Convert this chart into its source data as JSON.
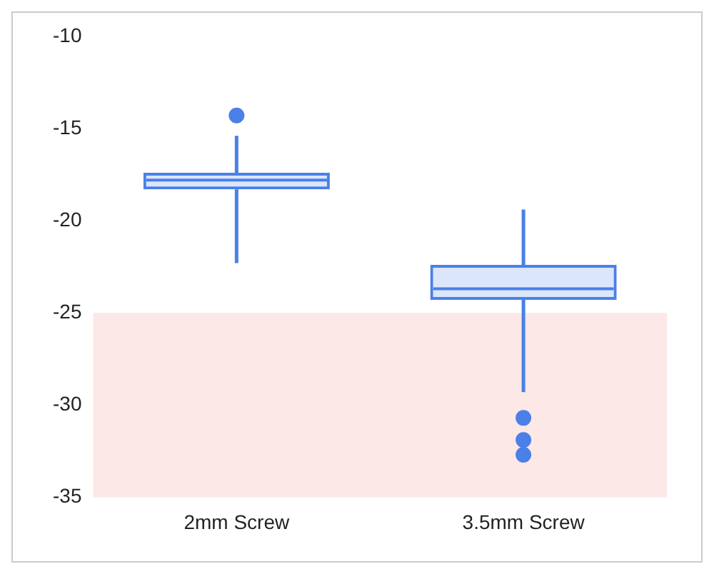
{
  "chart_data": {
    "type": "box",
    "categories": [
      "2mm Screw",
      "3.5mm Screw"
    ],
    "series": [
      {
        "color": "#4a80e8",
        "boxes": [
          {
            "low": -22.3,
            "q1": -18.3,
            "median": -17.8,
            "q3": -17.4,
            "high": -15.4,
            "outliers": [
              -14.3
            ]
          },
          {
            "low": -29.3,
            "q1": -24.3,
            "median": -23.7,
            "q3": -22.4,
            "high": -19.4,
            "outliers": [
              -30.7,
              -31.9,
              -32.7
            ]
          }
        ]
      }
    ],
    "ylim": [
      -35,
      -10
    ],
    "yticks": [
      -35,
      -30,
      -25,
      -20,
      -15,
      -10
    ],
    "bands": [
      {
        "axis": "y",
        "from": -35,
        "to": -25,
        "color": "#fce8e6"
      }
    ],
    "grid": false,
    "legend": false
  }
}
